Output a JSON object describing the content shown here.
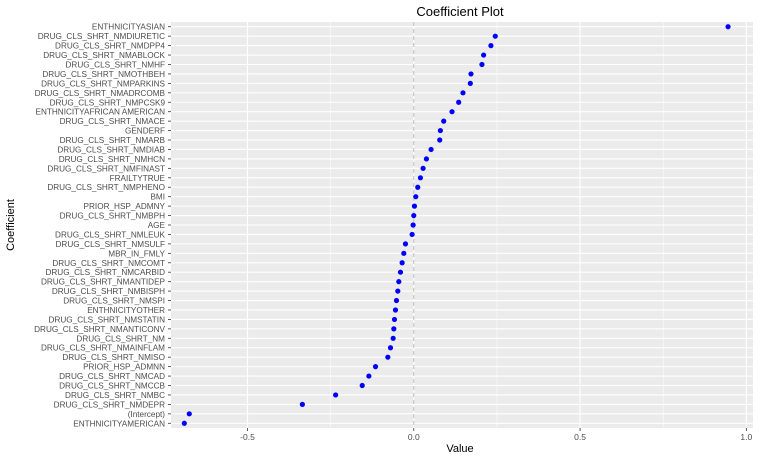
{
  "chart_data": {
    "type": "scatter",
    "title": "Coefficient Plot",
    "xlabel": "Value",
    "ylabel": "Coefficient",
    "xlim": [
      -0.73,
      1.02
    ],
    "xticks": [
      -0.5,
      0.0,
      0.5,
      1.0
    ],
    "xtick_labels": [
      "-0.5",
      "0.0",
      "0.5",
      "1.0"
    ],
    "reference_line_x": 0,
    "grid": true,
    "point_color": "#0000ff",
    "panel_color": "#ebebeb",
    "grid_color": "#ffffff",
    "categories": [
      "ENTHNICITYASIAN",
      "DRUG_CLS_SHRT_NMDIURETIC",
      "DRUG_CLS_SHRT_NMDPP4",
      "DRUG_CLS_SHRT_NMABLOCK",
      "DRUG_CLS_SHRT_NMHF",
      "DRUG_CLS_SHRT_NMOTHBEH",
      "DRUG_CLS_SHRT_NMPARKINS",
      "DRUG_CLS_SHRT_NMADRCOMB",
      "DRUG_CLS_SHRT_NMPCSK9",
      "ENTHNICITYAFRICAN AMERICAN",
      "DRUG_CLS_SHRT_NMACE",
      "GENDERF",
      "DRUG_CLS_SHRT_NMARB",
      "DRUG_CLS_SHRT_NMDIAB",
      "DRUG_CLS_SHRT_NMHCN",
      "DRUG_CLS_SHRT_NMFINAST",
      "FRAILTYTRUE",
      "DRUG_CLS_SHRT_NMPHENO",
      "BMI",
      "PRIOR_HSP_ADMNY",
      "DRUG_CLS_SHRT_NMBPH",
      "AGE",
      "DRUG_CLS_SHRT_NMLEUK",
      "DRUG_CLS_SHRT_NMSULF",
      "MBR_IN_FMLY",
      "DRUG_CLS_SHRT_NMCOMT",
      "DRUG_CLS_SHRT_NMCARBID",
      "DRUG_CLS_SHRT_NMANTIDEP",
      "DRUG_CLS_SHRT_NMBISPH",
      "DRUG_CLS_SHRT_NMSPI",
      "ENTHNICITYOTHER",
      "DRUG_CLS_SHRT_NMSTATIN",
      "DRUG_CLS_SHRT_NMANTICONV",
      "DRUG_CLS_SHRT_NM",
      "DRUG_CLS_SHRT_NMAINFLAM",
      "DRUG_CLS_SHRT_NMISO",
      "PRIOR_HSP_ADMNN",
      "DRUG_CLS_SHRT_NMCAD",
      "DRUG_CLS_SHRT_NMCCB",
      "DRUG_CLS_SHRT_NMBC",
      "DRUG_CLS_SHRT_NMDEPR",
      "(Intercept)",
      "ENTHNICITYAMERICAN"
    ],
    "values": [
      0.945,
      0.245,
      0.232,
      0.21,
      0.205,
      0.172,
      0.17,
      0.148,
      0.135,
      0.115,
      0.09,
      0.08,
      0.078,
      0.052,
      0.038,
      0.028,
      0.02,
      0.012,
      0.006,
      0.002,
      0.0,
      -0.002,
      -0.005,
      -0.025,
      -0.03,
      -0.035,
      -0.04,
      -0.045,
      -0.048,
      -0.052,
      -0.055,
      -0.058,
      -0.06,
      -0.062,
      -0.07,
      -0.078,
      -0.115,
      -0.135,
      -0.155,
      -0.235,
      -0.335,
      -0.675,
      -0.69
    ]
  }
}
